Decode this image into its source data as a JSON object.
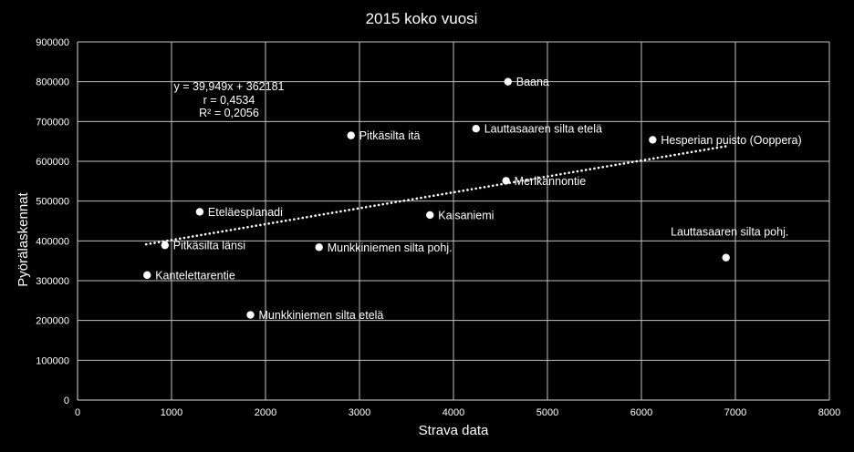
{
  "chart_data": {
    "type": "scatter",
    "title": "2015 koko vuosi",
    "xlabel": "Strava data",
    "ylabel": "Pyörälaskennat",
    "xlim": [
      0,
      8000
    ],
    "ylim": [
      0,
      900000
    ],
    "x_ticks": [
      "0",
      "1000",
      "2000",
      "3000",
      "4000",
      "5000",
      "6000",
      "7000",
      "8000"
    ],
    "y_ticks": [
      "0",
      "100000",
      "200000",
      "300000",
      "400000",
      "500000",
      "600000",
      "700000",
      "800000",
      "900000"
    ],
    "grid": true,
    "points": [
      {
        "label": "Baana",
        "x": 4580,
        "y": 800000
      },
      {
        "label": "Pitkäsilta itä",
        "x": 2910,
        "y": 665000
      },
      {
        "label": "Lauttasaaren silta etelä",
        "x": 4240,
        "y": 682000
      },
      {
        "label": "Hesperian puisto (Ooppera)",
        "x": 6120,
        "y": 654000
      },
      {
        "label": "Merikannontie",
        "x": 4560,
        "y": 551000
      },
      {
        "label": "Eteläesplanadi",
        "x": 1300,
        "y": 473000
      },
      {
        "label": "Kaisaniemi",
        "x": 3750,
        "y": 465000
      },
      {
        "label": "Lauttasaaren silta pohj.",
        "x": 6900,
        "y": 358000
      },
      {
        "label": "Pitkäsilta länsi",
        "x": 930,
        "y": 389000
      },
      {
        "label": "Munkkiniemen silta pohj.",
        "x": 2570,
        "y": 384000
      },
      {
        "label": "Kantelettarentie",
        "x": 740,
        "y": 314000
      },
      {
        "label": "Munkkiniemen silta etelä",
        "x": 1840,
        "y": 214000
      }
    ],
    "trendline": {
      "type": "linear",
      "slope": 39.949,
      "intercept": 362181,
      "x_range": [
        730,
        6910
      ],
      "style": "dotted",
      "equation_text": "y = 39,949x + 362181",
      "r_text": "r = 0,4534",
      "r2_text": "R² = 0,2056"
    },
    "colors": {
      "background": "#000000",
      "marker": "#ffffff",
      "grid": "#bfbfbf",
      "text": "#ffffff"
    }
  }
}
